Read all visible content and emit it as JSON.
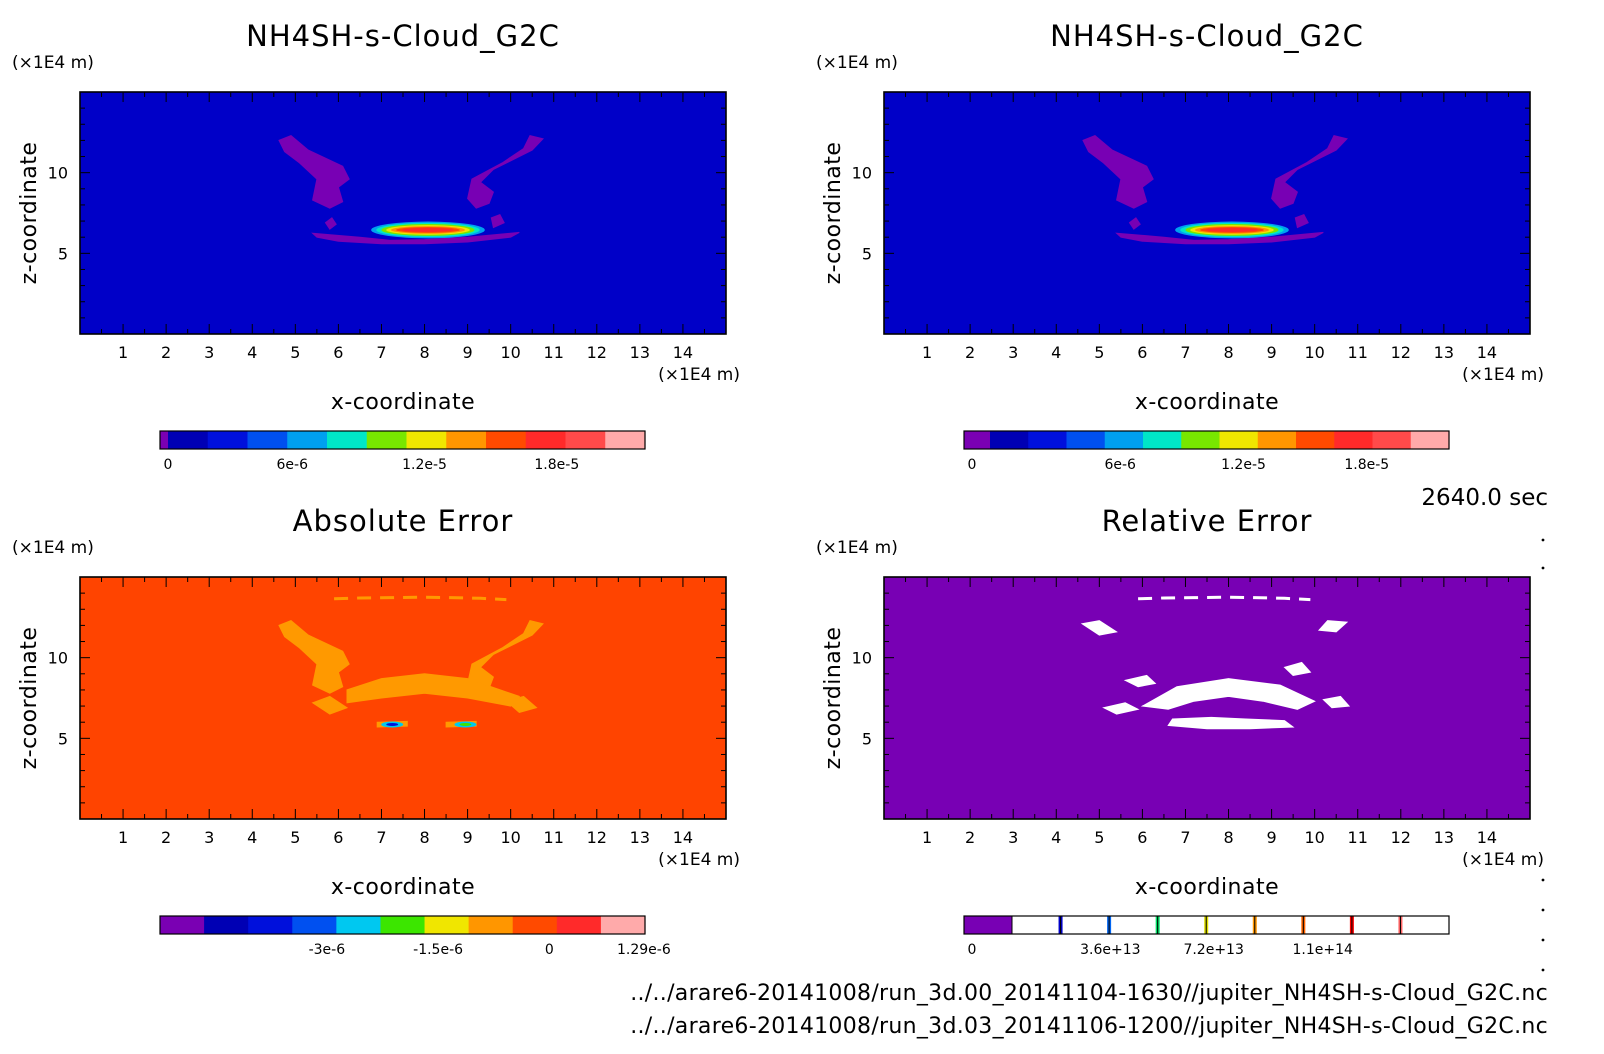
{
  "window": {
    "time_label": "2640.0 sec"
  },
  "footer": {
    "file1": "../../arare6-20141008/run_3d.00_20141104-1630//jupiter_NH4SH-s-Cloud_G2C.nc",
    "file2": "../../arare6-20141008/run_3d.03_20141106-1200//jupiter_NH4SH-s-Cloud_G2C.nc"
  },
  "colors": {
    "cloud_palette": [
      "#7a00b3",
      "#0000b4",
      "#0010dc",
      "#0050f0",
      "#00a0f0",
      "#00e6c8",
      "#78e600",
      "#f0e600",
      "#ff9600",
      "#ff4a00",
      "#ff2a2a",
      "#ff4a4a",
      "#ffaaaa"
    ],
    "abs_palette": [
      "#7a00b3",
      "#0000b4",
      "#0010dc",
      "#0050f0",
      "#00c8f0",
      "#3ce600",
      "#f0e600",
      "#ff9600",
      "#ff4a00",
      "#ff2a2a",
      "#ffaaaa"
    ],
    "rel_palette": [
      "#7800b4",
      "#ffffff",
      "#0000c8",
      "#0064f0",
      "#00dc64",
      "#dcdc00",
      "#ff9600",
      "#ff6400",
      "#ff0000",
      "#ff6464"
    ],
    "cloud_bg": "#0000c8",
    "cloud_outline": "#7800b4",
    "abs_bg": "#ff4400",
    "abs_feature": "#ff9900",
    "rel_bg": "#7800b4",
    "rel_feature": "#ffffff"
  },
  "chart_data": [
    {
      "id": "panel-1",
      "type": "heatmap",
      "title": "NH4SH-s-Cloud_G2C",
      "xlabel": "x-coordinate",
      "ylabel": "z-coordinate",
      "x_unit": "(×1E4 m)",
      "y_unit": "(×1E4 m)",
      "xlim": [
        0,
        15
      ],
      "ylim": [
        0,
        15
      ],
      "x_ticks": [
        1,
        2,
        3,
        4,
        5,
        6,
        7,
        8,
        9,
        10,
        11,
        12,
        13,
        14
      ],
      "y_ticks": [
        5,
        10
      ],
      "colorbar": {
        "min": 0,
        "max": 2.2e-05,
        "tick_values": [
          0,
          6e-06,
          1.2e-05,
          1.8e-05
        ],
        "tick_labels": [
          "0",
          "6e-6",
          "1.2e-5",
          "1.8e-5"
        ]
      }
    },
    {
      "id": "panel-2",
      "type": "heatmap",
      "title": "NH4SH-s-Cloud_G2C",
      "xlabel": "x-coordinate",
      "ylabel": "z-coordinate",
      "x_unit": "(×1E4 m)",
      "y_unit": "(×1E4 m)",
      "xlim": [
        0,
        15
      ],
      "ylim": [
        0,
        15
      ],
      "x_ticks": [
        1,
        2,
        3,
        4,
        5,
        6,
        7,
        8,
        9,
        10,
        11,
        12,
        13,
        14
      ],
      "y_ticks": [
        5,
        10
      ],
      "colorbar": {
        "min": -1.6e-06,
        "max": 2.2e-05,
        "tick_values": [
          0,
          6e-06,
          1.2e-05,
          1.8e-05
        ],
        "tick_labels": [
          "0",
          "6e-6",
          "1.2e-5",
          "1.8e-5"
        ]
      }
    },
    {
      "id": "panel-3",
      "type": "heatmap",
      "title": "Absolute Error",
      "xlabel": "x-coordinate",
      "ylabel": "z-coordinate",
      "x_unit": "(×1E4 m)",
      "y_unit": "(×1E4 m)",
      "xlim": [
        0,
        15
      ],
      "ylim": [
        0,
        15
      ],
      "x_ticks": [
        1,
        2,
        3,
        4,
        5,
        6,
        7,
        8,
        9,
        10,
        11,
        12,
        13,
        14
      ],
      "y_ticks": [
        5,
        10
      ],
      "colorbar": {
        "min": -5.25e-06,
        "max": 1.29e-06,
        "tick_values": [
          -3e-06,
          -1.5e-06,
          0,
          1.29e-06
        ],
        "tick_labels": [
          "-3e-6",
          "-1.5e-6",
          "0",
          "1.29e-6"
        ]
      }
    },
    {
      "id": "panel-4",
      "type": "heatmap",
      "title": "Relative Error",
      "xlabel": "x-coordinate",
      "ylabel": "z-coordinate",
      "x_unit": "(×1E4 m)",
      "y_unit": "(×1E4 m)",
      "xlim": [
        0,
        15
      ],
      "ylim": [
        0,
        15
      ],
      "x_ticks": [
        1,
        2,
        3,
        4,
        5,
        6,
        7,
        8,
        9,
        10,
        11,
        12,
        13,
        14
      ],
      "y_ticks": [
        5,
        10
      ],
      "colorbar": {
        "min": -15000000000000.0,
        "max": 154000000000000.0,
        "tick_values": [
          0,
          36000000000000.0,
          72000000000000.0,
          110000000000000.0
        ],
        "tick_labels": [
          "0",
          "3.6e+13",
          "7.2e+13",
          "1.1e+14"
        ]
      }
    }
  ]
}
